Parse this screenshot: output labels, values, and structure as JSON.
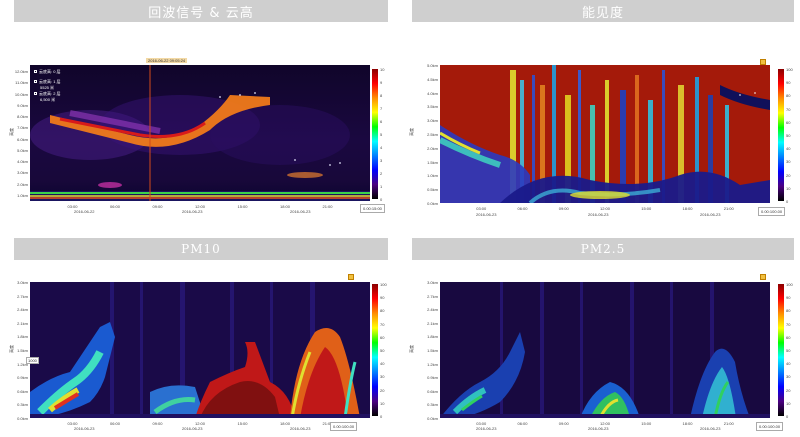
{
  "headers": {
    "echo": "回波信号 & 云高",
    "visibility": "能见度",
    "pm10": "PM10",
    "pm25": "PM2.5"
  },
  "echo_panel": {
    "y_ticks": [
      "12.0km",
      "11.0km",
      "10.0km",
      "9.0km",
      "8.0km",
      "7.0km",
      "6.0km",
      "5.0km",
      "4.0km",
      "3.0km",
      "2.0km",
      "1.0km"
    ],
    "x_ticks": [
      "03:00",
      "06:00",
      "09:00",
      "12:00",
      "15:00",
      "18:00",
      "21:00"
    ],
    "dates": [
      "2016-06-22",
      "2016-06-23",
      "2016-06-23"
    ],
    "y_title": "高度",
    "cb_ticks": [
      "10",
      "9",
      "8",
      "7",
      "6",
      "5",
      "4",
      "3",
      "2",
      "1",
      "0"
    ],
    "marker_time": "2016-06-22 09:05:24",
    "legend": [
      "云底高: 0 层",
      "云底高: 1 层",
      "5525 米",
      "云底高: 2 层",
      "6,500 米"
    ],
    "time_box": "0.00:15:00"
  },
  "vis_panel": {
    "y_ticks": [
      "5.0km",
      "4.5km",
      "4.0km",
      "3.5km",
      "3.0km",
      "2.5km",
      "2.0km",
      "1.5km",
      "1.0km",
      "0.5km",
      "0.0km"
    ],
    "x_ticks": [
      "03:00",
      "06:00",
      "09:00",
      "12:00",
      "15:00",
      "18:00",
      "21:00"
    ],
    "dates": [
      "2016-06-23",
      "2016-06-23",
      "2016-06-23"
    ],
    "y_title": "高度",
    "cb_ticks": [
      "100",
      "90",
      "80",
      "70",
      "60",
      "50",
      "40",
      "30",
      "20",
      "10",
      "0"
    ],
    "time_box": "0.00:100.00"
  },
  "pm10_panel": {
    "y_ticks": [
      "3.0km",
      "2.7km",
      "2.4km",
      "2.1km",
      "1.8km",
      "1.5km",
      "1.2km",
      "0.9km",
      "0.6km",
      "0.3km",
      "0.0km"
    ],
    "x_ticks": [
      "03:00",
      "06:00",
      "09:00",
      "12:00",
      "15:00",
      "18:00",
      "21:00"
    ],
    "dates": [
      "2016-06-23",
      "2016-06-23",
      "2016-06-23"
    ],
    "y_title": "高度",
    "cb_ticks": [
      "100",
      "90",
      "80",
      "70",
      "60",
      "50",
      "40",
      "30",
      "20",
      "10",
      "0"
    ],
    "marker": "1000",
    "time_box": "0.00:100.00"
  },
  "pm25_panel": {
    "y_ticks": [
      "3.0km",
      "2.7km",
      "2.4km",
      "2.1km",
      "1.8km",
      "1.5km",
      "1.2km",
      "0.9km",
      "0.6km",
      "0.3km",
      "0.0km"
    ],
    "x_ticks": [
      "03:00",
      "06:00",
      "09:00",
      "12:00",
      "15:00",
      "18:00",
      "21:00"
    ],
    "dates": [
      "2016-06-23",
      "2016-06-23",
      "2016-06-23"
    ],
    "y_title": "高度",
    "cb_ticks": [
      "100",
      "90",
      "80",
      "70",
      "60",
      "50",
      "40",
      "30",
      "20",
      "10",
      "0"
    ],
    "time_box": "0.00:100.00"
  }
}
